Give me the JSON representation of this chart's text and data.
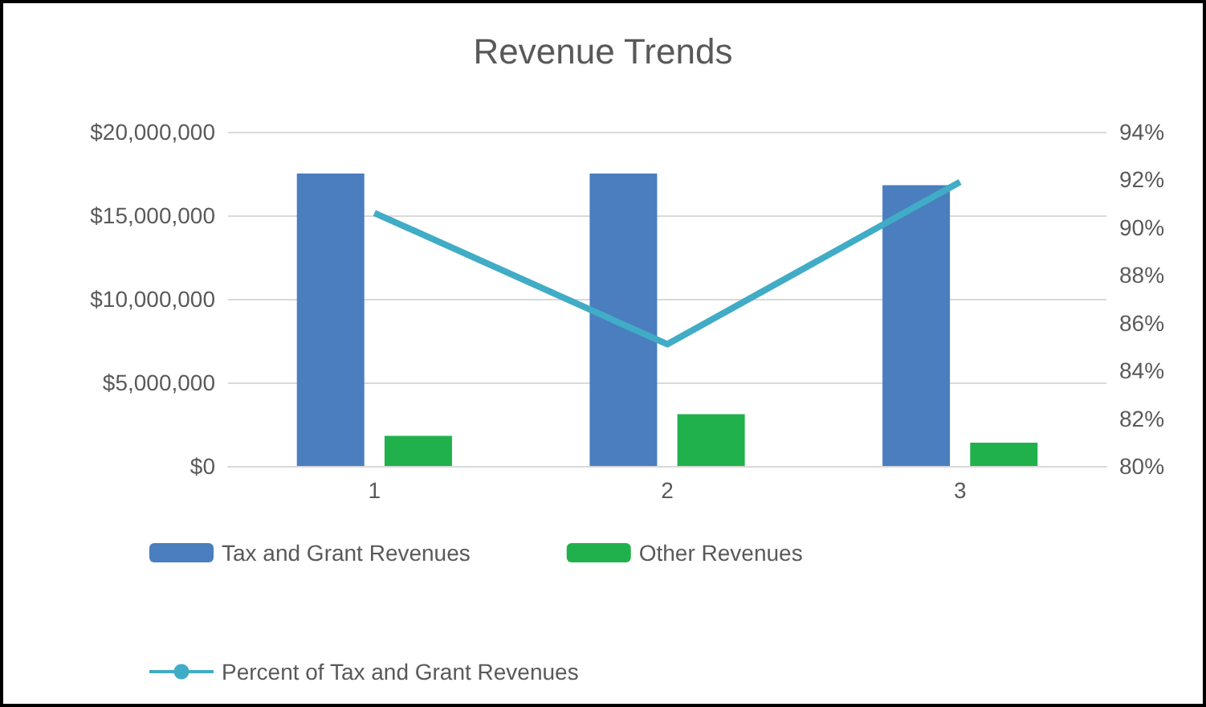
{
  "chart_data": {
    "type": "bar",
    "title": "Revenue Trends",
    "categories": [
      "1",
      "2",
      "3"
    ],
    "series": [
      {
        "name": "Tax and Grant Revenues",
        "color": "#4a7ebf",
        "values": [
          17500000,
          17500000,
          16800000
        ]
      },
      {
        "name": "Other Revenues",
        "color": "#21b14c",
        "values": [
          1800000,
          3100000,
          1400000
        ]
      },
      {
        "name": "Percent of Tax and Grant Revenues",
        "type": "line",
        "axis": "y2",
        "color": "#41acc6",
        "marker": "none",
        "values": [
          90.6,
          85.1,
          91.9
        ]
      }
    ],
    "ylim": [
      0,
      20000000
    ],
    "yticks": [
      {
        "value": 0,
        "label": "$0"
      },
      {
        "value": 5000000,
        "label": "$5,000,000"
      },
      {
        "value": 10000000,
        "label": "$10,000,000"
      },
      {
        "value": 15000000,
        "label": "$15,000,000"
      },
      {
        "value": 20000000,
        "label": "$20,000,000"
      }
    ],
    "y2lim": [
      80,
      94
    ],
    "y2ticks": [
      {
        "value": 80,
        "label": "80%"
      },
      {
        "value": 82,
        "label": "82%"
      },
      {
        "value": 84,
        "label": "84%"
      },
      {
        "value": 86,
        "label": "86%"
      },
      {
        "value": 88,
        "label": "88%"
      },
      {
        "value": 90,
        "label": "90%"
      },
      {
        "value": 92,
        "label": "92%"
      },
      {
        "value": 94,
        "label": "94%"
      }
    ],
    "grid": "y",
    "legend": "bottom"
  }
}
